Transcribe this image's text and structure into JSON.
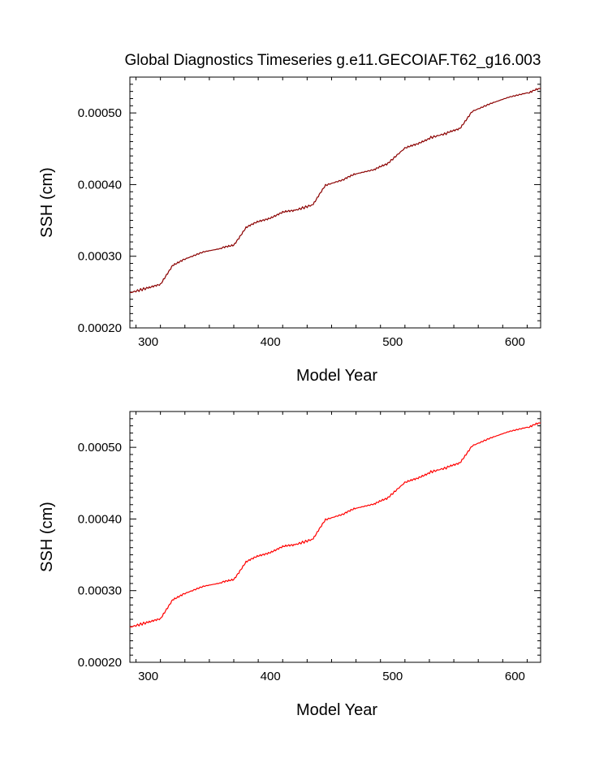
{
  "figure": {
    "title": "Global Diagnostics Timeseries g.e11.GECOIAF.T62_g16.003"
  },
  "chart_data": [
    {
      "type": "line",
      "title": "Global Diagnostics Timeseries g.e11.GECOIAF.T62_g16.003",
      "xlabel": "Model Year",
      "ylabel": "SSH (cm)",
      "xlim": [
        285,
        621
      ],
      "ylim": [
        0.0002,
        0.00055
      ],
      "x_ticks": [
        300,
        400,
        500,
        600
      ],
      "x_tick_labels": [
        "300",
        "400",
        "500",
        "600"
      ],
      "y_ticks": [
        0.0002,
        0.0003,
        0.0004,
        0.0005
      ],
      "y_tick_labels": [
        "0.00020",
        "0.00030",
        "0.00040",
        "0.00050"
      ],
      "series": [
        {
          "name": "SSH",
          "color": "#8b0000",
          "x": [
            285,
            300,
            310,
            320,
            330,
            345,
            360,
            370,
            380,
            390,
            400,
            410,
            420,
            435,
            445,
            460,
            470,
            485,
            495,
            510,
            520,
            530,
            545,
            555,
            565,
            580,
            595,
            610,
            621
          ],
          "y": [
            0.000249,
            0.000256,
            0.00026,
            0.000288,
            0.000296,
            0.000306,
            0.000311,
            0.000316,
            0.00034,
            0.000348,
            0.000354,
            0.000361,
            0.000364,
            0.000372,
            0.000399,
            0.000407,
            0.000415,
            0.000421,
            0.000428,
            0.000451,
            0.000456,
            0.000465,
            0.000472,
            0.000479,
            0.000502,
            0.000513,
            0.000522,
            0.000528,
            0.000534
          ]
        }
      ]
    },
    {
      "type": "line",
      "title": "",
      "xlabel": "Model Year",
      "ylabel": "SSH (cm)",
      "xlim": [
        285,
        621
      ],
      "ylim": [
        0.0002,
        0.00055
      ],
      "x_ticks": [
        300,
        400,
        500,
        600
      ],
      "x_tick_labels": [
        "300",
        "400",
        "500",
        "600"
      ],
      "y_ticks": [
        0.0002,
        0.0003,
        0.0004,
        0.0005
      ],
      "y_tick_labels": [
        "0.00020",
        "0.00030",
        "0.00040",
        "0.00050"
      ],
      "series": [
        {
          "name": "SSH",
          "color": "#ff0000",
          "x": [
            285,
            300,
            310,
            320,
            330,
            345,
            360,
            370,
            380,
            390,
            400,
            410,
            420,
            435,
            445,
            460,
            470,
            485,
            495,
            510,
            520,
            530,
            545,
            555,
            565,
            580,
            595,
            610,
            621
          ],
          "y": [
            0.000249,
            0.000256,
            0.00026,
            0.000288,
            0.000296,
            0.000306,
            0.000311,
            0.000316,
            0.00034,
            0.000348,
            0.000354,
            0.000361,
            0.000364,
            0.000372,
            0.000399,
            0.000407,
            0.000415,
            0.000421,
            0.000428,
            0.000451,
            0.000456,
            0.000465,
            0.000472,
            0.000479,
            0.000502,
            0.000513,
            0.000522,
            0.000528,
            0.000534
          ]
        }
      ]
    }
  ]
}
